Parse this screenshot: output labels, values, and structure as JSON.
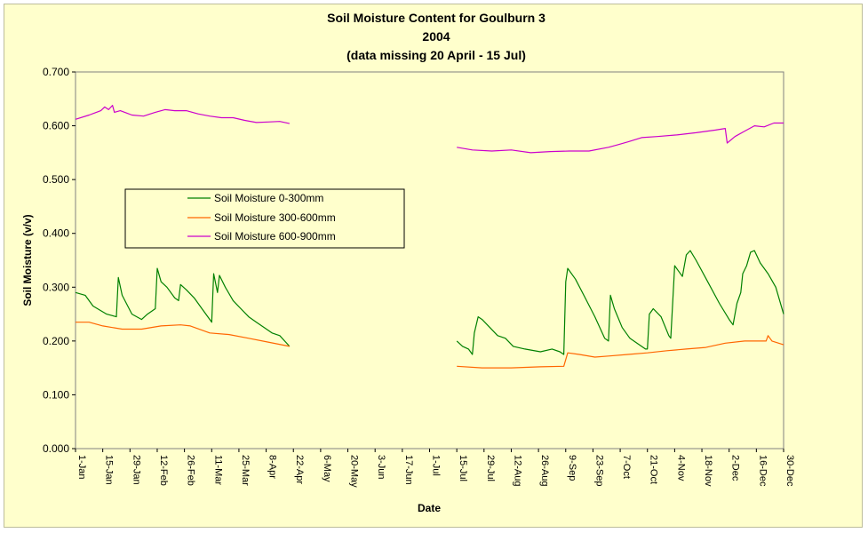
{
  "chart_data": {
    "type": "line",
    "title_lines": [
      "Soil Moisture Content for Goulburn 3",
      "2004",
      "(data missing 20 April - 15 Jul)"
    ],
    "xlabel": "Date",
    "ylabel": "Soil Moisture (v/v)",
    "ylim": [
      0,
      0.7
    ],
    "yticks": [
      "0.000",
      "0.100",
      "0.200",
      "0.300",
      "0.400",
      "0.500",
      "0.600",
      "0.700"
    ],
    "xlim_day": [
      1,
      365
    ],
    "xticks": [
      {
        "day": 1,
        "label": "1-Jan"
      },
      {
        "day": 15,
        "label": "15-Jan"
      },
      {
        "day": 29,
        "label": "29-Jan"
      },
      {
        "day": 43,
        "label": "12-Feb"
      },
      {
        "day": 57,
        "label": "26-Feb"
      },
      {
        "day": 71,
        "label": "11-Mar"
      },
      {
        "day": 85,
        "label": "25-Mar"
      },
      {
        "day": 99,
        "label": "8-Apr"
      },
      {
        "day": 113,
        "label": "22-Apr"
      },
      {
        "day": 127,
        "label": "6-May"
      },
      {
        "day": 141,
        "label": "20-May"
      },
      {
        "day": 155,
        "label": "3-Jun"
      },
      {
        "day": 169,
        "label": "17-Jun"
      },
      {
        "day": 183,
        "label": "1-Jul"
      },
      {
        "day": 197,
        "label": "15-Jul"
      },
      {
        "day": 211,
        "label": "29-Jul"
      },
      {
        "day": 225,
        "label": "12-Aug"
      },
      {
        "day": 239,
        "label": "26-Aug"
      },
      {
        "day": 253,
        "label": "9-Sep"
      },
      {
        "day": 267,
        "label": "23-Sep"
      },
      {
        "day": 281,
        "label": "7-Oct"
      },
      {
        "day": 295,
        "label": "21-Oct"
      },
      {
        "day": 309,
        "label": "4-Nov"
      },
      {
        "day": 323,
        "label": "18-Nov"
      },
      {
        "day": 337,
        "label": "2-Dec"
      },
      {
        "day": 351,
        "label": "16-Dec"
      },
      {
        "day": 365,
        "label": "30-Dec"
      }
    ],
    "grid": false,
    "legend_position": "center-left",
    "plot_background": "#ffffcc",
    "series": [
      {
        "name": "Soil Moisture 0-300mm",
        "color": "#008000",
        "points": [
          [
            [
              1,
              0.29
            ],
            [
              6,
              0.285
            ],
            [
              10,
              0.265
            ],
            [
              17,
              0.25
            ],
            [
              22,
              0.245
            ],
            [
              23,
              0.318
            ],
            [
              25,
              0.285
            ],
            [
              30,
              0.25
            ],
            [
              35,
              0.24
            ],
            [
              38,
              0.25
            ],
            [
              42,
              0.26
            ],
            [
              43,
              0.335
            ],
            [
              45,
              0.31
            ],
            [
              48,
              0.3
            ],
            [
              52,
              0.28
            ],
            [
              54,
              0.275
            ],
            [
              55,
              0.305
            ],
            [
              58,
              0.295
            ],
            [
              62,
              0.28
            ],
            [
              66,
              0.26
            ],
            [
              70,
              0.24
            ],
            [
              71,
              0.235
            ],
            [
              72,
              0.325
            ],
            [
              74,
              0.29
            ],
            [
              75,
              0.322
            ],
            [
              78,
              0.3
            ],
            [
              82,
              0.275
            ],
            [
              86,
              0.26
            ],
            [
              90,
              0.245
            ],
            [
              94,
              0.235
            ],
            [
              98,
              0.225
            ],
            [
              102,
              0.215
            ],
            [
              106,
              0.21
            ],
            [
              111,
              0.19
            ]
          ],
          [
            [
              197,
              0.2
            ],
            [
              200,
              0.19
            ],
            [
              203,
              0.185
            ],
            [
              205,
              0.175
            ],
            [
              206,
              0.215
            ],
            [
              208,
              0.245
            ],
            [
              210,
              0.24
            ],
            [
              214,
              0.225
            ],
            [
              218,
              0.21
            ],
            [
              222,
              0.205
            ],
            [
              226,
              0.19
            ],
            [
              232,
              0.185
            ],
            [
              240,
              0.18
            ],
            [
              246,
              0.185
            ],
            [
              250,
              0.18
            ],
            [
              252,
              0.175
            ],
            [
              253,
              0.31
            ],
            [
              254,
              0.335
            ],
            [
              258,
              0.315
            ],
            [
              263,
              0.28
            ],
            [
              268,
              0.245
            ],
            [
              273,
              0.205
            ],
            [
              275,
              0.2
            ],
            [
              276,
              0.285
            ],
            [
              278,
              0.26
            ],
            [
              282,
              0.225
            ],
            [
              286,
              0.205
            ],
            [
              290,
              0.195
            ],
            [
              294,
              0.185
            ],
            [
              295,
              0.185
            ],
            [
              296,
              0.25
            ],
            [
              298,
              0.26
            ],
            [
              302,
              0.245
            ],
            [
              306,
              0.21
            ],
            [
              307,
              0.205
            ],
            [
              309,
              0.34
            ],
            [
              313,
              0.32
            ],
            [
              315,
              0.36
            ],
            [
              317,
              0.368
            ],
            [
              320,
              0.35
            ],
            [
              326,
              0.31
            ],
            [
              332,
              0.27
            ],
            [
              337,
              0.24
            ],
            [
              339,
              0.23
            ],
            [
              341,
              0.27
            ],
            [
              343,
              0.29
            ],
            [
              344,
              0.325
            ],
            [
              346,
              0.34
            ],
            [
              348,
              0.365
            ],
            [
              350,
              0.368
            ],
            [
              353,
              0.345
            ],
            [
              357,
              0.325
            ],
            [
              361,
              0.3
            ],
            [
              363,
              0.275
            ],
            [
              365,
              0.25
            ]
          ]
        ]
      },
      {
        "name": "Soil Moisture 300-600mm",
        "color": "#ff6600",
        "points": [
          [
            [
              1,
              0.235
            ],
            [
              8,
              0.235
            ],
            [
              15,
              0.228
            ],
            [
              25,
              0.222
            ],
            [
              35,
              0.222
            ],
            [
              45,
              0.228
            ],
            [
              55,
              0.23
            ],
            [
              60,
              0.228
            ],
            [
              70,
              0.215
            ],
            [
              80,
              0.212
            ],
            [
              90,
              0.205
            ],
            [
              100,
              0.198
            ],
            [
              111,
              0.19
            ]
          ],
          [
            [
              197,
              0.153
            ],
            [
              210,
              0.15
            ],
            [
              225,
              0.15
            ],
            [
              240,
              0.152
            ],
            [
              252,
              0.153
            ],
            [
              254,
              0.178
            ],
            [
              260,
              0.175
            ],
            [
              268,
              0.17
            ],
            [
              275,
              0.172
            ],
            [
              285,
              0.175
            ],
            [
              295,
              0.178
            ],
            [
              305,
              0.182
            ],
            [
              315,
              0.185
            ],
            [
              325,
              0.188
            ],
            [
              335,
              0.196
            ],
            [
              345,
              0.2
            ],
            [
              352,
              0.2
            ],
            [
              356,
              0.2
            ],
            [
              357,
              0.21
            ],
            [
              359,
              0.2
            ],
            [
              365,
              0.193
            ]
          ]
        ]
      },
      {
        "name": "Soil Moisture 600-900mm",
        "color": "#cc00cc",
        "points": [
          [
            [
              1,
              0.612
            ],
            [
              8,
              0.62
            ],
            [
              14,
              0.628
            ],
            [
              16,
              0.635
            ],
            [
              18,
              0.63
            ],
            [
              20,
              0.638
            ],
            [
              21,
              0.625
            ],
            [
              24,
              0.628
            ],
            [
              30,
              0.62
            ],
            [
              36,
              0.618
            ],
            [
              42,
              0.625
            ],
            [
              47,
              0.63
            ],
            [
              52,
              0.628
            ],
            [
              58,
              0.628
            ],
            [
              64,
              0.622
            ],
            [
              70,
              0.618
            ],
            [
              76,
              0.615
            ],
            [
              82,
              0.615
            ],
            [
              88,
              0.61
            ],
            [
              94,
              0.606
            ],
            [
              100,
              0.607
            ],
            [
              106,
              0.608
            ],
            [
              111,
              0.604
            ]
          ],
          [
            [
              197,
              0.56
            ],
            [
              205,
              0.555
            ],
            [
              215,
              0.553
            ],
            [
              225,
              0.555
            ],
            [
              235,
              0.55
            ],
            [
              245,
              0.552
            ],
            [
              255,
              0.553
            ],
            [
              265,
              0.553
            ],
            [
              275,
              0.56
            ],
            [
              280,
              0.565
            ],
            [
              285,
              0.57
            ],
            [
              292,
              0.578
            ],
            [
              300,
              0.58
            ],
            [
              310,
              0.583
            ],
            [
              320,
              0.587
            ],
            [
              330,
              0.592
            ],
            [
              335,
              0.595
            ],
            [
              336,
              0.568
            ],
            [
              340,
              0.58
            ],
            [
              345,
              0.59
            ],
            [
              350,
              0.6
            ],
            [
              355,
              0.598
            ],
            [
              360,
              0.605
            ],
            [
              365,
              0.605
            ]
          ]
        ]
      }
    ]
  }
}
